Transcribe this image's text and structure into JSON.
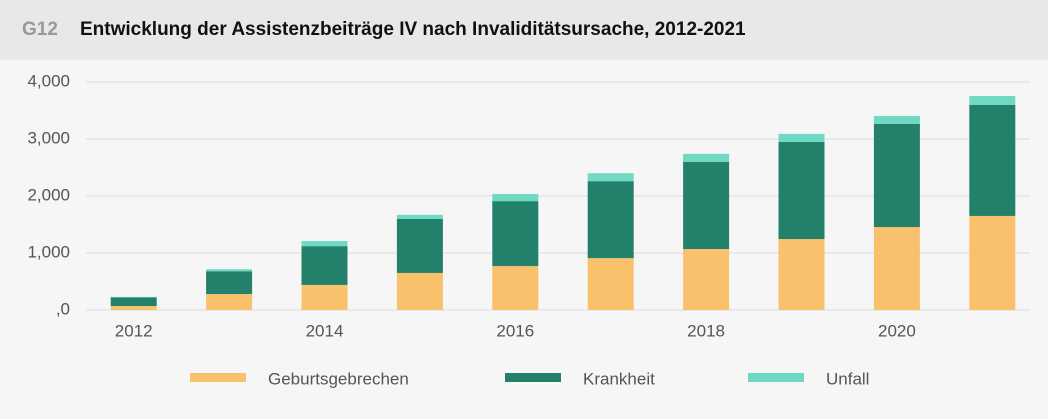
{
  "chart_data": {
    "type": "stacked_bar",
    "figure_label": "G12",
    "title": "Entwicklung der Assistenzbeiträge IV nach Invaliditätsursache, 2012-2021",
    "categories": [
      "2012",
      null,
      "2014",
      null,
      "2016",
      null,
      "2018",
      null,
      "2020",
      null
    ],
    "series": [
      {
        "name": "Geburtsgebrechen",
        "color": "#f9c16b",
        "values": [
          70,
          280,
          440,
          650,
          770,
          910,
          1070,
          1245,
          1455,
          1650
        ]
      },
      {
        "name": "Krankheit",
        "color": "#23806b",
        "values": [
          150,
          400,
          680,
          950,
          1140,
          1350,
          1530,
          1705,
          1810,
          1950
        ]
      },
      {
        "name": "Unfall",
        "color": "#6fd9c4",
        "values": [
          10,
          35,
          90,
          70,
          125,
          140,
          140,
          140,
          140,
          155
        ]
      }
    ],
    "ylim": [
      0,
      4000
    ],
    "yticks": [
      {
        "value": 0,
        "label": ",0"
      },
      {
        "value": 1000,
        "label": "1,000"
      },
      {
        "value": 2000,
        "label": "2,000"
      },
      {
        "value": 3000,
        "label": "3,000"
      },
      {
        "value": 4000,
        "label": "4,000"
      }
    ],
    "grid": true,
    "legend": "bottom"
  }
}
